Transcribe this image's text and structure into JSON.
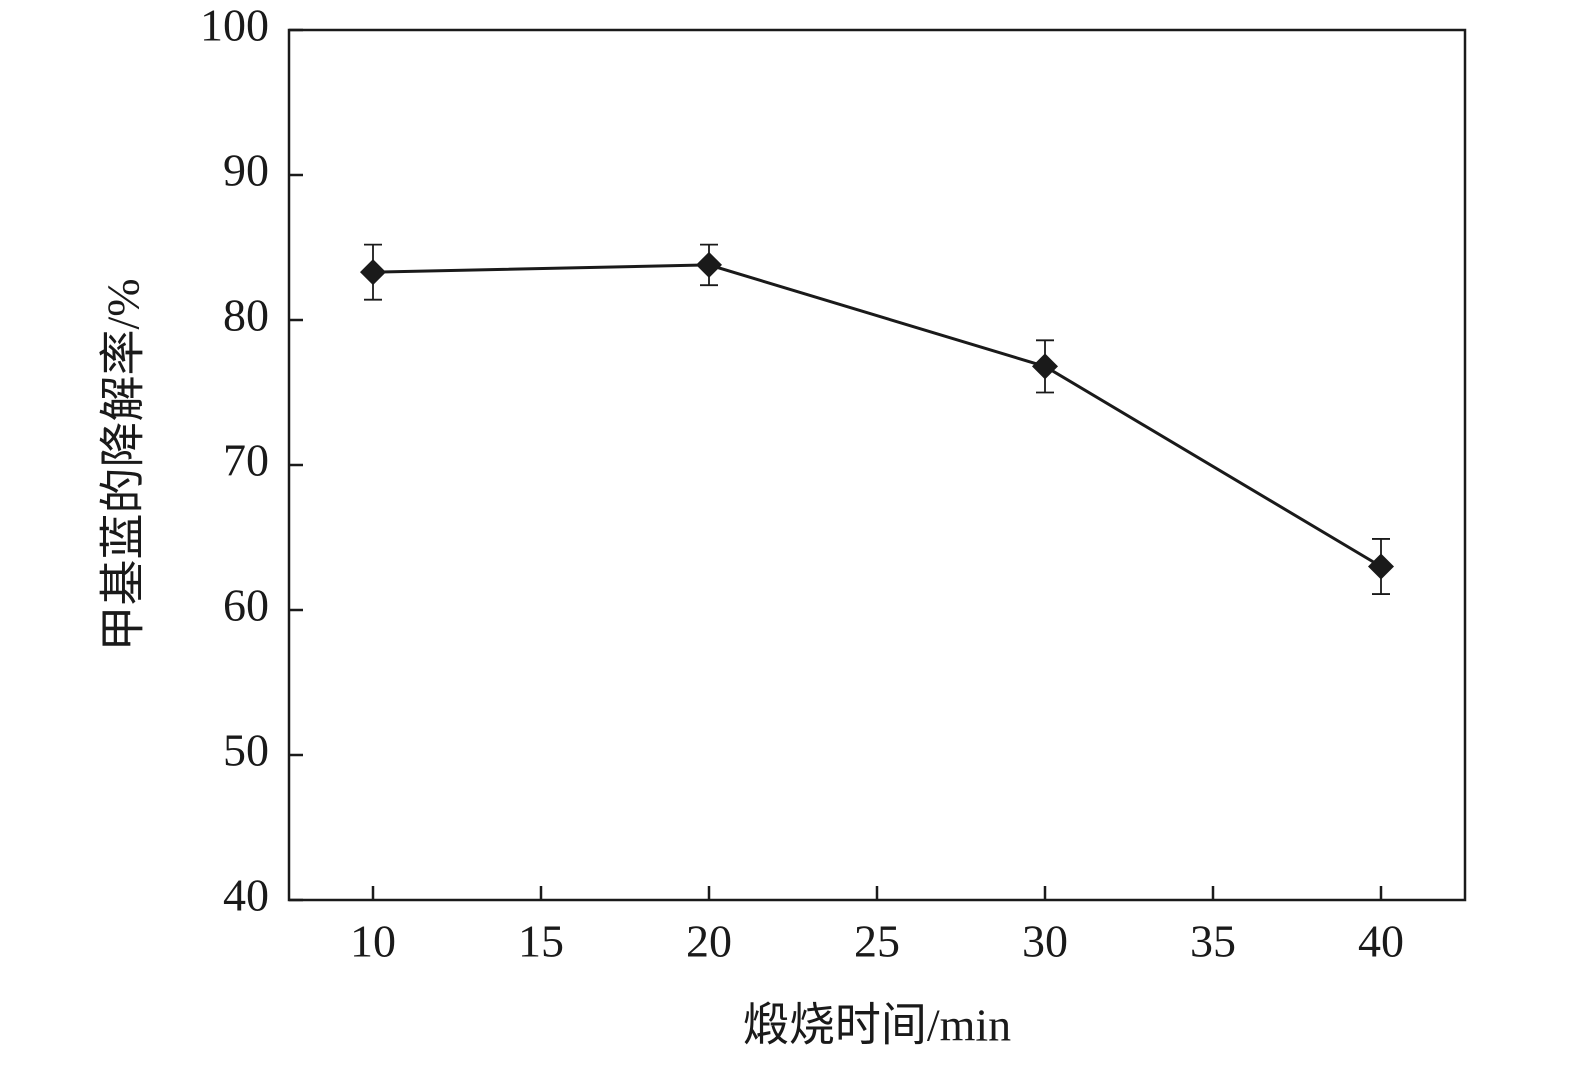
{
  "chart_data": {
    "type": "line",
    "x_label": "煅烧时间/min",
    "y_label": "甲基蓝的降解率/%",
    "x": [
      10,
      20,
      30,
      40
    ],
    "series": [
      {
        "color": "#1a1a1a",
        "values": [
          83.3,
          83.8,
          76.8,
          63.0
        ],
        "errors": [
          1.9,
          1.4,
          1.8,
          1.9
        ]
      }
    ],
    "xlim": [
      7.5,
      42.5
    ],
    "xticks": [
      10,
      15,
      20,
      25,
      30,
      35,
      40
    ],
    "ylim": [
      40,
      100
    ],
    "yticks": [
      40,
      50,
      60,
      70,
      80,
      90,
      100
    ],
    "grid": false
  }
}
